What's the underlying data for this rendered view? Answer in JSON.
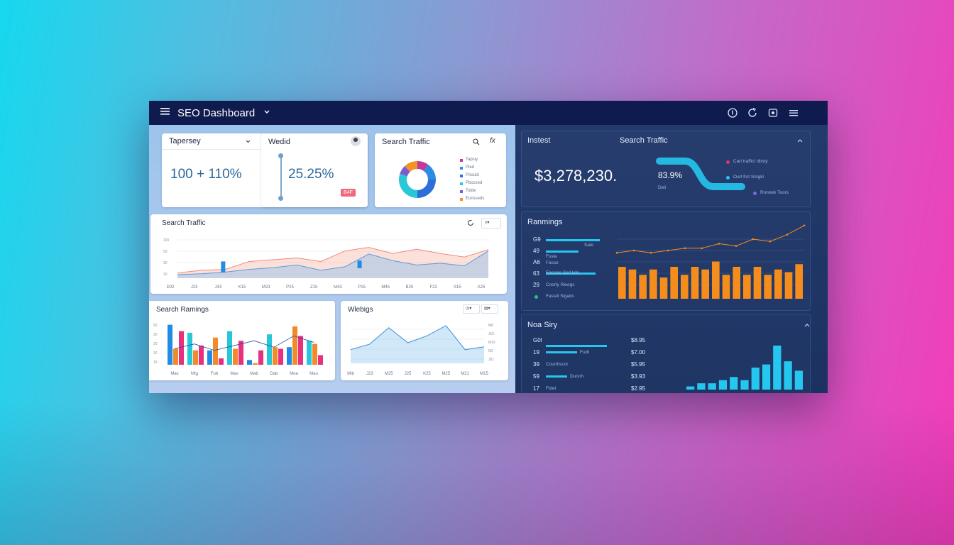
{
  "window": {
    "title": "SEO Dashboard",
    "menu_icon": "hamburger-icon",
    "dropdown_icon": "chevron-down-icon",
    "toolbar_icons": [
      "info-icon",
      "refresh-icon",
      "settings-icon",
      "menu-icon"
    ]
  },
  "card1": {
    "title": "Tapersey",
    "value": "100 + 110%"
  },
  "card2": {
    "title": "Wedid",
    "value": "25.25%",
    "badge": "B4F"
  },
  "card3": {
    "title": "Search Traffic",
    "legend": [
      "Tapsiy",
      "Pied",
      "Poould",
      "Pbocsed",
      "Tolde",
      "Eunsseds"
    ],
    "legend_colors": [
      "#c2399a",
      "#2d8be6",
      "#2d6fd6",
      "#28c8d8",
      "#7a5cd0",
      "#f39227"
    ]
  },
  "card4": {
    "title": "Search Traffic",
    "ylabels": [
      "100",
      "50",
      "20",
      "10"
    ],
    "xlabels": [
      "D02",
      "J23",
      "J43",
      "K15",
      "M23",
      "P25",
      "Z15",
      "M43",
      "P15",
      "M45",
      "B25",
      "F22",
      "S15",
      "A25"
    ]
  },
  "card5": {
    "title": "Search Ramings",
    "ylabels": [
      "50",
      "20",
      "20",
      "10",
      "15"
    ],
    "xlabels": [
      "Mas",
      "Mtg",
      "Fub",
      "Mas",
      "Mab",
      "Dab",
      "Moa",
      "Mau"
    ]
  },
  "card6": {
    "title": "Wlebigs",
    "ylabels": [
      "M8",
      "J15",
      "M16",
      "M2",
      "J01"
    ],
    "xlabels": [
      "Mib",
      "J23",
      "M25",
      "J25",
      "K25",
      "M25",
      "M21",
      "M15"
    ]
  },
  "insight": {
    "label": "Instest",
    "subtitle": "Search Traffic",
    "total": "$3,278,230.",
    "percent": "83.9%",
    "small": "Deli",
    "legend": [
      "Carl traffic/ dbsty",
      "Ourl frst Smgkl",
      "Ronnek Toors"
    ],
    "legend_colors": [
      "#e0356a",
      "#25c7f0",
      "#7a6ae0"
    ]
  },
  "rankings": {
    "title": "Ranmings",
    "rows": [
      {
        "num": "G9",
        "label": "Sale"
      },
      {
        "num": "49",
        "label": "Fssla"
      },
      {
        "num": "A6",
        "label": "Fasse"
      },
      {
        "num": "63",
        "label": "Fassiss Scrl kds"
      },
      {
        "num": "29",
        "label": "Coorly Rewgs"
      },
      {
        "num": "",
        "label": "Fassiil Sigaks"
      }
    ]
  },
  "history": {
    "title": "Noa Siry",
    "rows": [
      {
        "num": "G0l",
        "label": "",
        "value": "$8.95"
      },
      {
        "num": "19",
        "label": "Fudl",
        "value": "$7.00"
      },
      {
        "num": "39",
        "label": "Courihscol",
        "value": "$5.95"
      },
      {
        "num": "59",
        "label": "Dunnh",
        "value": "$3.93"
      },
      {
        "num": "17",
        "label": "Fidel",
        "value": "$2.95"
      }
    ]
  },
  "chart_data": [
    {
      "type": "pie",
      "title": "Search Traffic",
      "categories": [
        "Tapsiy",
        "Pied",
        "Poould",
        "Pbocsed",
        "Tolde",
        "Eunsseds"
      ],
      "values": [
        10,
        15,
        25,
        30,
        8,
        12
      ]
    },
    {
      "type": "line",
      "title": "Search Traffic",
      "x": [
        "D02",
        "J23",
        "J43",
        "K15",
        "M23",
        "P25",
        "Z15",
        "M43",
        "P15",
        "M45",
        "B25",
        "F22",
        "S15",
        "A25"
      ],
      "series": [
        {
          "values": [
            12,
            18,
            20,
            38,
            42,
            46,
            38,
            62,
            70,
            56,
            66,
            56,
            48,
            65
          ]
        },
        {
          "values": [
            8,
            10,
            14,
            20,
            24,
            30,
            18,
            26,
            55,
            40,
            30,
            34,
            28,
            62
          ]
        }
      ],
      "ylim": [
        0,
        100
      ]
    },
    {
      "type": "bar",
      "title": "Search Ramings",
      "categories": [
        "Mas",
        "Mtg",
        "Fub",
        "Mas",
        "Mab",
        "Dab",
        "Moa",
        "Mau"
      ],
      "series": [
        {
          "values": [
            50,
            40,
            18,
            42,
            6,
            38,
            22,
            30
          ]
        },
        {
          "values": [
            20,
            18,
            34,
            20,
            2,
            22,
            48,
            26
          ]
        },
        {
          "values": [
            42,
            24,
            8,
            30,
            18,
            20,
            36,
            12
          ]
        }
      ]
    },
    {
      "type": "area",
      "title": "Wlebigs",
      "x": [
        "Mib",
        "J23",
        "M25",
        "J25",
        "K25",
        "M25",
        "M21",
        "M15"
      ],
      "values": [
        20,
        28,
        52,
        30,
        40,
        55,
        20,
        24
      ]
    },
    {
      "type": "bar",
      "title": "Ranmings",
      "values": [
        12,
        11,
        9,
        11,
        8,
        12,
        9,
        12,
        11,
        14,
        9,
        12,
        9,
        12,
        9,
        11,
        10,
        13
      ],
      "line": [
        4,
        5,
        4,
        5,
        6,
        6,
        8,
        7,
        10,
        9,
        12,
        16
      ]
    },
    {
      "type": "bar",
      "title": "Noa Siry",
      "values": [
        1,
        2,
        2,
        3,
        4,
        3,
        7,
        8,
        14,
        9,
        6
      ]
    }
  ]
}
